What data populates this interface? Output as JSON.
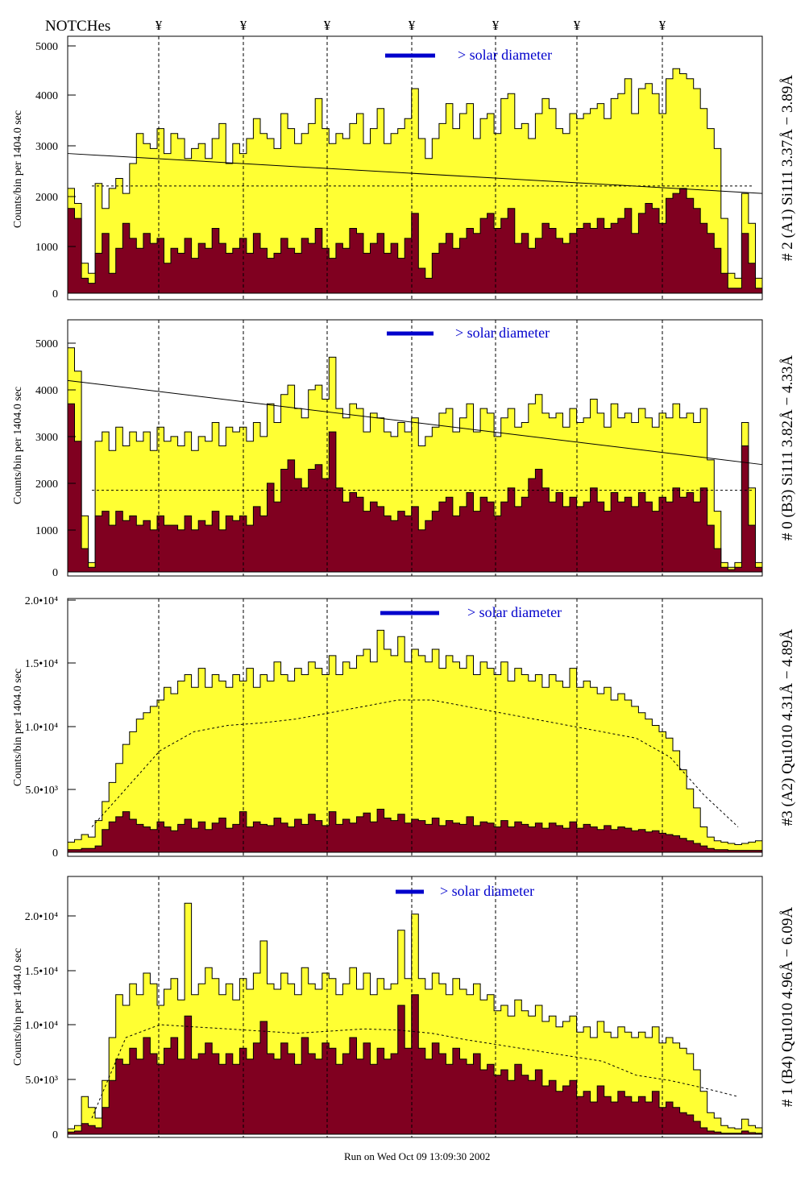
{
  "header": {
    "notches_label": "NOTCHes",
    "notch_symbol": "¥",
    "notch_x_positions": [
      197,
      302,
      406,
      511,
      615,
      716,
      822
    ]
  },
  "footer": {
    "run_label": "Run on Wed Oct 09 13:09:30 2002"
  },
  "colors": {
    "fill_upper": "#ffff33",
    "fill_lower": "#800020",
    "annotation_blue": "#0000cc",
    "outline": "#000000"
  },
  "chart_data": [
    {
      "type": "area",
      "panel_label": "# 2 (A1) Si111  3.37Å − 3.89Å",
      "ylabel": "Counts/bin per   1404.0 sec",
      "yticks": [
        "5000",
        "4000",
        "3000",
        "2000",
        "1000",
        "0"
      ],
      "ylim": [
        0,
        5150
      ],
      "legend_text": "> solar diameter",
      "series": [
        {
          "name": "upper",
          "values": [
            2100,
            1800,
            600,
            400,
            2200,
            1700,
            2100,
            2300,
            2000,
            2600,
            3200,
            3000,
            2900,
            3300,
            2800,
            3200,
            3100,
            2700,
            2900,
            3000,
            2700,
            3100,
            3400,
            2600,
            3000,
            2800,
            3100,
            3500,
            3200,
            3100,
            2900,
            3600,
            3300,
            3000,
            3200,
            3400,
            3900,
            3300,
            3000,
            3200,
            3100,
            3400,
            3600,
            3000,
            3300,
            3700,
            3000,
            3200,
            3300,
            3500,
            4100,
            3100,
            2700,
            3100,
            3400,
            3800,
            3300,
            3600,
            3800,
            3100,
            3500,
            3600,
            3200,
            3900,
            4000,
            3300,
            3400,
            3100,
            3600,
            3900,
            3700,
            3300,
            3200,
            3600,
            3500,
            3600,
            3700,
            3800,
            3500,
            3900,
            4000,
            4300,
            3600,
            4100,
            4200,
            4000,
            3600,
            4300,
            4500,
            4400,
            4300,
            4100,
            3700,
            3300,
            2900,
            1500,
            400,
            300,
            2000,
            1400,
            300
          ]
        },
        {
          "name": "lower",
          "values": [
            1700,
            1500,
            300,
            200,
            800,
            1200,
            400,
            900,
            1400,
            1100,
            900,
            1200,
            1000,
            1100,
            600,
            900,
            800,
            1100,
            700,
            1000,
            900,
            1300,
            1000,
            800,
            900,
            1100,
            800,
            1200,
            900,
            700,
            800,
            1100,
            900,
            800,
            1100,
            1000,
            1300,
            900,
            700,
            1000,
            900,
            1300,
            1200,
            800,
            1000,
            1200,
            800,
            1000,
            700,
            1100,
            1600,
            500,
            300,
            800,
            1000,
            1200,
            900,
            1100,
            1300,
            1200,
            1500,
            1600,
            1300,
            1500,
            1700,
            1000,
            1200,
            900,
            1100,
            1400,
            1300,
            1100,
            1000,
            1200,
            1300,
            1400,
            1300,
            1500,
            1300,
            1400,
            1500,
            1700,
            1200,
            1600,
            1800,
            1700,
            1400,
            1900,
            2000,
            2100,
            1900,
            1700,
            1400,
            1200,
            900,
            400,
            100,
            100,
            1200,
            600,
            100
          ]
        }
      ],
      "dashed_level": 2150,
      "solid_line": [
        2800,
        2000
      ]
    },
    {
      "type": "area",
      "panel_label": "# 0 (B3) Si111  3.82Å − 4.33Å",
      "ylabel": "Counts/bin per   1404.0 sec",
      "yticks": [
        "5000",
        "4000",
        "3000",
        "2000",
        "1000",
        "0"
      ],
      "ylim": [
        0,
        5400
      ],
      "legend_text": "> solar diameter",
      "series": [
        {
          "name": "upper",
          "values": [
            4800,
            4300,
            1200,
            200,
            2800,
            3000,
            2600,
            3100,
            2700,
            3000,
            2800,
            3000,
            2600,
            3100,
            2800,
            2900,
            2700,
            3000,
            2600,
            2900,
            2800,
            3200,
            2700,
            3100,
            3000,
            3100,
            2800,
            3200,
            2900,
            3600,
            3200,
            3800,
            4000,
            3500,
            3300,
            3900,
            4000,
            3700,
            4600,
            3500,
            3300,
            3600,
            3500,
            3000,
            3400,
            3300,
            3000,
            2900,
            3200,
            3000,
            3300,
            2700,
            2900,
            3100,
            3400,
            3500,
            3000,
            3300,
            3600,
            3000,
            3500,
            3400,
            2900,
            3300,
            3500,
            3100,
            3200,
            3600,
            3800,
            3400,
            3300,
            3400,
            3100,
            3500,
            3200,
            3300,
            3700,
            3400,
            3100,
            3600,
            3300,
            3400,
            3200,
            3500,
            3300,
            3100,
            3400,
            3300,
            3600,
            3300,
            3400,
            3200,
            3500,
            2400,
            1300,
            200,
            100,
            200,
            3200,
            1800,
            200
          ]
        },
        {
          "name": "lower",
          "values": [
            3600,
            2800,
            500,
            100,
            1200,
            1300,
            1000,
            1300,
            1100,
            1200,
            1000,
            1100,
            900,
            1200,
            1000,
            1000,
            900,
            1200,
            900,
            1100,
            1000,
            1300,
            900,
            1200,
            1100,
            1200,
            1000,
            1400,
            1200,
            1900,
            1500,
            2200,
            2400,
            2000,
            1800,
            2200,
            2300,
            2000,
            3000,
            1800,
            1500,
            1700,
            1600,
            1300,
            1500,
            1400,
            1200,
            1100,
            1300,
            1200,
            1400,
            900,
            1100,
            1300,
            1500,
            1600,
            1200,
            1400,
            1700,
            1300,
            1600,
            1500,
            1200,
            1500,
            1800,
            1400,
            1600,
            2000,
            2200,
            1800,
            1500,
            1700,
            1400,
            1600,
            1400,
            1500,
            1800,
            1500,
            1300,
            1700,
            1500,
            1600,
            1400,
            1700,
            1500,
            1300,
            1600,
            1500,
            1800,
            1600,
            1700,
            1500,
            1800,
            1000,
            500,
            100,
            50,
            100,
            2700,
            1000,
            100
          ]
        }
      ],
      "dashed_level": 1750,
      "solid_line": [
        4100,
        2300
      ]
    },
    {
      "type": "area",
      "panel_label": "#3 (A2) Qu1010  4.31Å − 4.89Å",
      "ylabel": "Counts/bin per   1404.0 sec",
      "yticks": [
        "2.0•10⁴",
        "1.5•10⁴",
        "1.0•10⁴",
        "5.0•10³",
        "0"
      ],
      "ylim": [
        0,
        20000
      ],
      "legend_text": "> solar diameter",
      "series": [
        {
          "name": "upper",
          "values": [
            800,
            1000,
            1400,
            1200,
            2500,
            4000,
            5500,
            7000,
            8500,
            9500,
            10500,
            11000,
            11500,
            12000,
            13000,
            12500,
            13500,
            14000,
            13000,
            14500,
            13000,
            14000,
            13500,
            13000,
            14000,
            13500,
            14500,
            13000,
            14000,
            13500,
            15000,
            14000,
            13500,
            14500,
            14000,
            15000,
            14500,
            14000,
            15500,
            14000,
            15000,
            14500,
            15500,
            16000,
            15000,
            17500,
            16000,
            15500,
            17000,
            15000,
            16000,
            15500,
            15000,
            16000,
            14500,
            15500,
            15000,
            14500,
            15500,
            14000,
            15000,
            14500,
            14000,
            15000,
            13500,
            14500,
            14000,
            13500,
            14000,
            13000,
            14000,
            13500,
            13000,
            14500,
            13000,
            13500,
            13000,
            12500,
            13000,
            12000,
            12500,
            12000,
            11500,
            11000,
            10500,
            10000,
            9500,
            9000,
            8000,
            6500,
            5000,
            3500,
            2000,
            1200,
            900,
            800,
            700,
            600,
            700,
            800,
            900
          ]
        },
        {
          "name": "lower",
          "values": [
            200,
            200,
            300,
            300,
            500,
            1800,
            2400,
            2800,
            3200,
            2600,
            2200,
            2000,
            1800,
            2400,
            2000,
            1700,
            2200,
            2600,
            1900,
            2400,
            1800,
            2300,
            2700,
            1900,
            2200,
            3200,
            2000,
            2400,
            2200,
            2100,
            2700,
            2300,
            2000,
            2600,
            2200,
            3000,
            2500,
            2100,
            3200,
            2200,
            2600,
            2300,
            2800,
            3100,
            2400,
            3400,
            2700,
            2500,
            3000,
            2300,
            2600,
            2500,
            2200,
            2700,
            2100,
            2500,
            2300,
            2200,
            2800,
            2100,
            2400,
            2300,
            2000,
            2500,
            2000,
            2400,
            2200,
            2000,
            2300,
            1900,
            2300,
            2100,
            1900,
            2400,
            1900,
            2200,
            2000,
            1800,
            2100,
            1800,
            2000,
            1900,
            1700,
            1800,
            1600,
            1700,
            1500,
            1400,
            1300,
            1100,
            900,
            700,
            500,
            300,
            200,
            200,
            150,
            150,
            150,
            150,
            150
          ]
        }
      ],
      "dashed_level": null,
      "dashed_curve": [
        2000,
        5000,
        8000,
        9500,
        10000,
        10200,
        10500,
        11000,
        11500,
        12000,
        12000,
        11500,
        11000,
        10500,
        10000,
        9500,
        9000,
        7500,
        4500,
        2000
      ],
      "solid_line": null
    },
    {
      "type": "area",
      "panel_label": "# 1 (B4) Qu1010 4.96Å − 6.09Å",
      "ylabel": "Counts/bin per   1404.0 sec",
      "yticks": [
        "2.0•10⁴",
        "1.5•10⁴",
        "1.0•10⁴",
        "5.0•10³",
        "0"
      ],
      "ylim": [
        0,
        24000
      ],
      "legend_text": "> solar diameter",
      "series": [
        {
          "name": "upper",
          "values": [
            500,
            800,
            3500,
            2500,
            1500,
            5000,
            9000,
            13000,
            12000,
            14000,
            13000,
            15000,
            14000,
            12000,
            13500,
            14500,
            12500,
            21500,
            13000,
            14000,
            15500,
            14500,
            13000,
            14000,
            12500,
            14500,
            13500,
            15000,
            18000,
            14000,
            13500,
            15000,
            14000,
            13000,
            15500,
            14000,
            13500,
            15000,
            14500,
            13000,
            14000,
            15500,
            13500,
            15000,
            13000,
            14500,
            13500,
            14000,
            19000,
            14500,
            20500,
            14500,
            13500,
            15000,
            14000,
            13000,
            14500,
            13500,
            13000,
            14000,
            12500,
            13000,
            11500,
            12000,
            11000,
            12500,
            11500,
            11000,
            12000,
            10500,
            11000,
            10000,
            10500,
            11000,
            9500,
            10000,
            9000,
            10500,
            9500,
            9000,
            10000,
            9500,
            9000,
            9500,
            9000,
            10000,
            8500,
            9000,
            8500,
            8000,
            7500,
            6000,
            4000,
            2000,
            1500,
            800,
            600,
            500,
            1400,
            800,
            600
          ]
        },
        {
          "name": "lower",
          "values": [
            200,
            300,
            1000,
            800,
            600,
            2500,
            5000,
            7000,
            6500,
            8000,
            7000,
            9000,
            7500,
            6500,
            8000,
            9000,
            7000,
            11000,
            7000,
            7500,
            8500,
            7500,
            6500,
            7500,
            6500,
            8000,
            7000,
            8500,
            10500,
            7500,
            7000,
            8500,
            7500,
            6500,
            9000,
            7500,
            7000,
            8500,
            8000,
            6500,
            7500,
            9000,
            7000,
            8500,
            6500,
            8000,
            7000,
            7500,
            12000,
            8000,
            13000,
            8000,
            7000,
            8500,
            7500,
            6500,
            8000,
            7000,
            6500,
            7500,
            6000,
            6500,
            5500,
            6000,
            5000,
            6500,
            5500,
            5000,
            6000,
            4500,
            5000,
            4000,
            4500,
            5000,
            3500,
            4000,
            3000,
            4500,
            3500,
            3000,
            4000,
            3500,
            3000,
            3500,
            3000,
            4000,
            2500,
            3000,
            2500,
            2000,
            1800,
            1200,
            600,
            300,
            200,
            100,
            100,
            100,
            300,
            150,
            100
          ]
        }
      ],
      "dashed_level": null,
      "dashed_curve": [
        1500,
        9000,
        10200,
        10000,
        9800,
        9600,
        9400,
        9600,
        9800,
        9700,
        9400,
        8800,
        8300,
        7800,
        7300,
        6800,
        5500,
        5000,
        4300,
        3500
      ],
      "solid_line": null
    }
  ]
}
